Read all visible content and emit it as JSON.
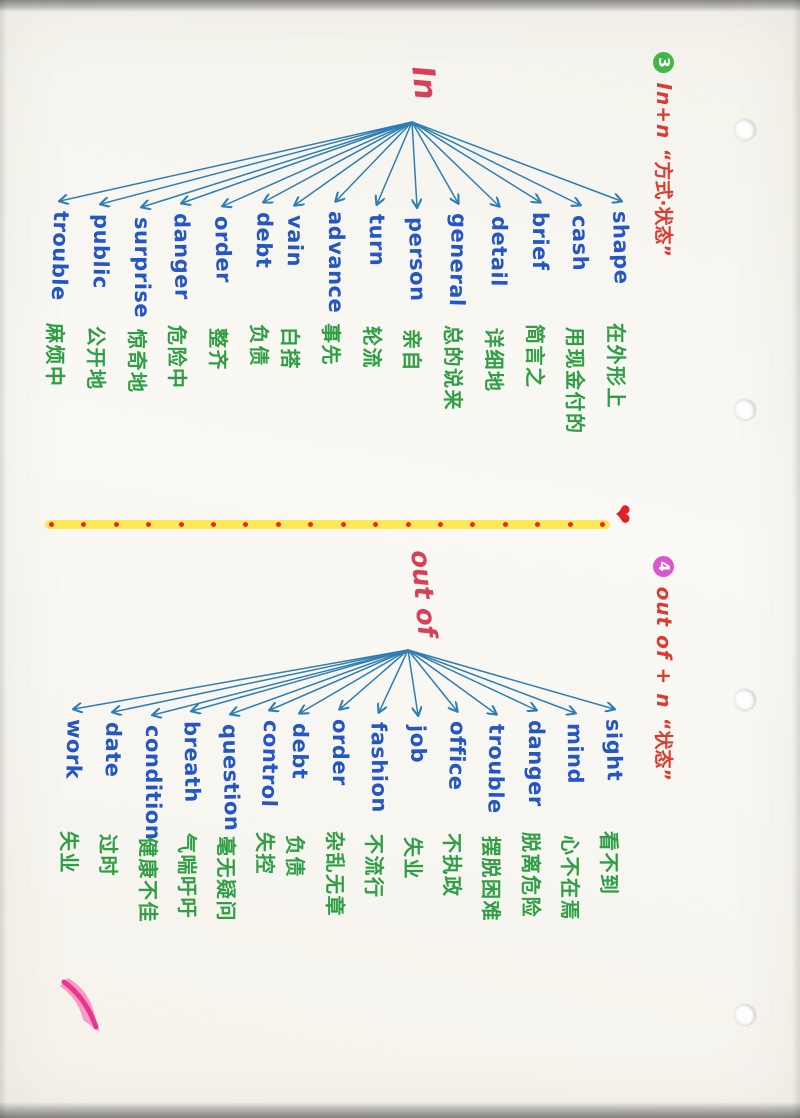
{
  "page": {
    "kind": "handwritten English-phrase mind-map notes, photographed rotated 90°",
    "paper_color": "#faf9f5",
    "background_color": "#9b9b99"
  },
  "colors": {
    "word_blue": "#2456c4",
    "meaning_green": "#2f9e44",
    "line_blue": "#2e7eb3",
    "heading_red": "#dc3b2f",
    "hub_red": "#d8405a",
    "divider_yellow": "#ffe94d",
    "accent_red": "#e21f26"
  },
  "sections": [
    {
      "id": "in-n",
      "badge": "3",
      "badge_color": "#43b649",
      "title": "In+n",
      "subtitle": "“方式·状态”",
      "hub": "In",
      "entries": [
        {
          "word": "shape",
          "meaning": "在外形上"
        },
        {
          "word": "cash",
          "meaning": "用现金付的"
        },
        {
          "word": "brief",
          "meaning": "简言之"
        },
        {
          "word": "detail",
          "meaning": "详细地"
        },
        {
          "word": "general",
          "meaning": "总的说来"
        },
        {
          "word": "person",
          "meaning": "亲自"
        },
        {
          "word": "turn",
          "meaning": "轮流"
        },
        {
          "word": "advance",
          "meaning": "事先"
        },
        {
          "word": "vain",
          "meaning": "白搭"
        },
        {
          "word": "debt",
          "meaning": "负债"
        },
        {
          "word": "order",
          "meaning": "整齐"
        },
        {
          "word": "danger",
          "meaning": "危险中"
        },
        {
          "word": "surprise",
          "meaning": "惊奇地"
        },
        {
          "word": "public",
          "meaning": "公开地"
        },
        {
          "word": "trouble",
          "meaning": "麻烦中"
        }
      ]
    },
    {
      "id": "out-of-n",
      "badge": "4",
      "badge_color": "#d957ce",
      "title": "out of + n",
      "subtitle": "“状态”",
      "hub": "out of",
      "entries": [
        {
          "word": "sight",
          "meaning": "看不到"
        },
        {
          "word": "mind",
          "meaning": "心不在焉"
        },
        {
          "word": "danger",
          "meaning": "脱离危险"
        },
        {
          "word": "trouble",
          "meaning": "摆脱困难"
        },
        {
          "word": "office",
          "meaning": "不执政"
        },
        {
          "word": "job",
          "meaning": "失业"
        },
        {
          "word": "fashion",
          "meaning": "不流行"
        },
        {
          "word": "order",
          "meaning": "杂乱无章"
        },
        {
          "word": "debt",
          "meaning": "负债"
        },
        {
          "word": "control",
          "meaning": "失控"
        },
        {
          "word": "question",
          "meaning": "毫无疑问"
        },
        {
          "word": "breath",
          "meaning": "气喘吁吁"
        },
        {
          "word": "condition",
          "meaning": "健康不佳"
        },
        {
          "word": "date",
          "meaning": "过时"
        },
        {
          "word": "work",
          "meaning": "失业"
        }
      ]
    }
  ],
  "divider": {
    "heart": "❤",
    "dot_count": 18
  }
}
